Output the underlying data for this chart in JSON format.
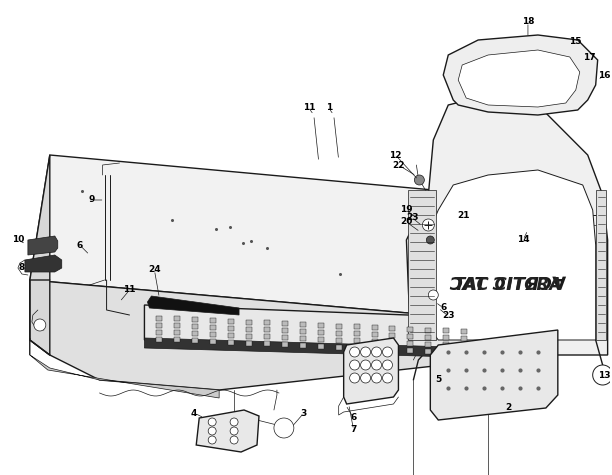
{
  "bg_color": "#ffffff",
  "line_color": "#1a1a1a",
  "figsize": [
    6.12,
    4.75
  ],
  "dpi": 100,
  "lw_main": 1.0,
  "lw_thin": 0.5,
  "lw_med": 0.7
}
